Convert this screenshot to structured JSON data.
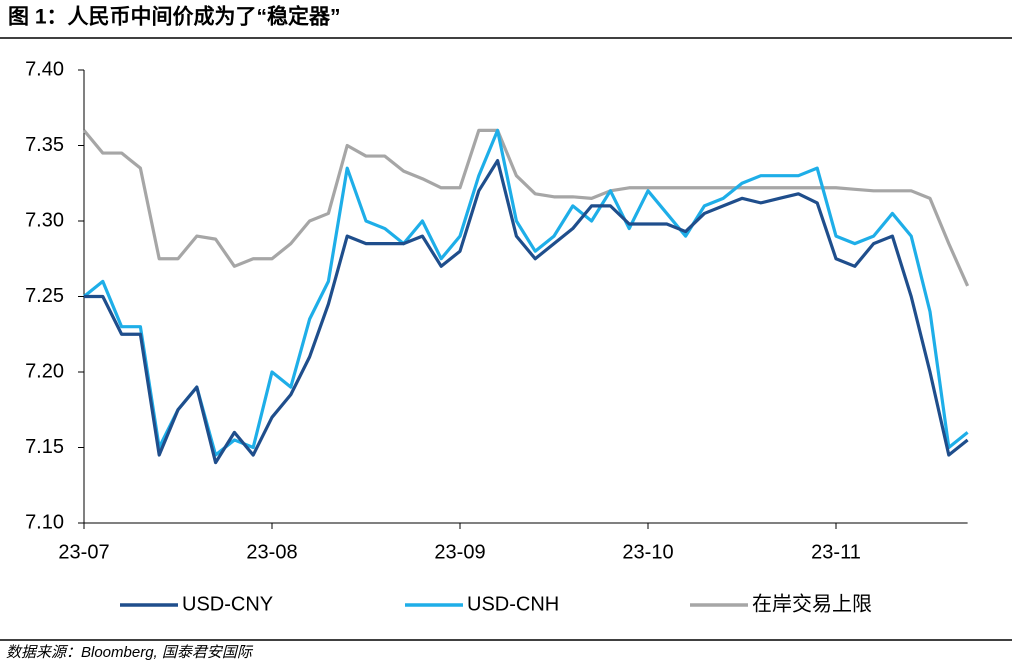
{
  "chart_data": {
    "type": "line",
    "title": "图 1：人民币中间价成为了“稳定器”",
    "source": "数据来源：Bloomberg, 国泰君安国际",
    "categories": [
      "23-07",
      null,
      null,
      null,
      null,
      null,
      null,
      null,
      null,
      null,
      "23-08",
      null,
      null,
      null,
      null,
      null,
      null,
      null,
      null,
      null,
      "23-09",
      null,
      null,
      null,
      null,
      null,
      null,
      null,
      null,
      null,
      "23-10",
      null,
      null,
      null,
      null,
      null,
      null,
      null,
      null,
      null,
      "23-11",
      null,
      null,
      null,
      null,
      null,
      null,
      null
    ],
    "series": [
      {
        "name": "USD-CNY",
        "color": "#1f4e8c",
        "values": [
          7.25,
          7.25,
          7.225,
          7.225,
          7.145,
          7.175,
          7.19,
          7.14,
          7.16,
          7.145,
          7.17,
          7.185,
          7.21,
          7.245,
          7.29,
          7.285,
          7.285,
          7.285,
          7.29,
          7.27,
          7.28,
          7.32,
          7.34,
          7.29,
          7.275,
          7.285,
          7.295,
          7.31,
          7.31,
          7.298,
          7.298,
          7.298,
          7.293,
          7.305,
          7.31,
          7.315,
          7.312,
          7.315,
          7.318,
          7.312,
          7.275,
          7.27,
          7.285,
          7.29,
          7.25,
          7.2,
          7.145,
          7.155
        ]
      },
      {
        "name": "USD-CNH",
        "color": "#1eaee8",
        "values": [
          7.25,
          7.26,
          7.23,
          7.23,
          7.15,
          7.175,
          7.19,
          7.145,
          7.155,
          7.15,
          7.2,
          7.19,
          7.235,
          7.26,
          7.335,
          7.3,
          7.295,
          7.285,
          7.3,
          7.275,
          7.29,
          7.33,
          7.36,
          7.3,
          7.28,
          7.29,
          7.31,
          7.3,
          7.32,
          7.295,
          7.32,
          7.305,
          7.29,
          7.31,
          7.315,
          7.325,
          7.33,
          7.33,
          7.33,
          7.335,
          7.29,
          7.285,
          7.29,
          7.305,
          7.29,
          7.24,
          7.15,
          7.16
        ]
      },
      {
        "name": "在岸交易上限",
        "color": "#a6a6a6",
        "values": [
          7.36,
          7.345,
          7.345,
          7.335,
          7.275,
          7.275,
          7.29,
          7.288,
          7.27,
          7.275,
          7.275,
          7.285,
          7.3,
          7.305,
          7.35,
          7.343,
          7.343,
          7.333,
          7.328,
          7.322,
          7.322,
          7.36,
          7.36,
          7.33,
          7.318,
          7.316,
          7.316,
          7.315,
          7.32,
          7.322,
          7.322,
          7.322,
          7.322,
          7.322,
          7.322,
          7.322,
          7.322,
          7.322,
          7.322,
          7.322,
          7.322,
          7.321,
          7.32,
          7.32,
          7.32,
          7.315,
          7.285,
          7.257
        ]
      }
    ],
    "ylim": [
      7.1,
      7.4
    ],
    "yticks": [
      {
        "value": 7.1,
        "label": "7.10"
      },
      {
        "value": 7.15,
        "label": "7.15"
      },
      {
        "value": 7.2,
        "label": "7.20"
      },
      {
        "value": 7.25,
        "label": "7.25"
      },
      {
        "value": 7.3,
        "label": "7.30"
      },
      {
        "value": 7.35,
        "label": "7.35"
      },
      {
        "value": 7.4,
        "label": "7.40"
      }
    ],
    "legend": "bottom"
  }
}
